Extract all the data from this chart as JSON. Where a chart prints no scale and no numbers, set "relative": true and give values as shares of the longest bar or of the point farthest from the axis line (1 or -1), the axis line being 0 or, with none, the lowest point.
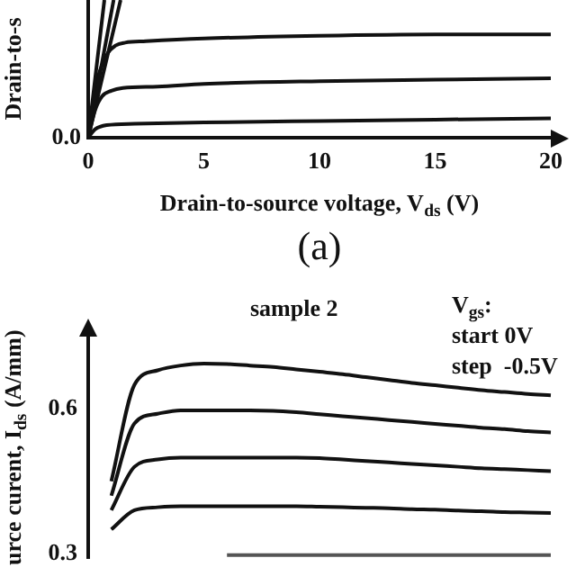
{
  "chart_data": [
    {
      "type": "line",
      "relative": true,
      "xlabel": "Drain-to-source voltage, V$_{ds}$ (V)",
      "ylabel": "Drain-to-s",
      "xlim": [
        0,
        20
      ],
      "xticks": [
        0,
        5,
        10,
        15,
        20
      ],
      "grid": false,
      "legend": false,
      "marker": "none",
      "line_style": "solid",
      "annotations": [
        "0.0",
        "(a)"
      ],
      "series": [
        {
          "color": "#111111",
          "x": [
            0,
            0.7
          ],
          "values": [
            0,
            1
          ]
        },
        {
          "color": "#111111",
          "x": [
            0,
            1.1
          ],
          "values": [
            0,
            1
          ]
        },
        {
          "color": "#111111",
          "x": [
            0,
            1.4
          ],
          "values": [
            0,
            1
          ]
        },
        {
          "color": "#111111",
          "x": [
            0,
            0.3,
            0.8,
            1.2,
            1.6,
            2.5,
            5,
            10,
            15,
            20
          ],
          "values": [
            0,
            0.35,
            0.6,
            0.67,
            0.69,
            0.7,
            0.72,
            0.74,
            0.75,
            0.75
          ]
        },
        {
          "color": "#111111",
          "x": [
            0,
            0.3,
            0.6,
            1,
            1.5,
            3,
            5,
            10,
            15,
            20
          ],
          "values": [
            0,
            0.2,
            0.3,
            0.34,
            0.36,
            0.37,
            0.39,
            0.41,
            0.42,
            0.43
          ]
        },
        {
          "color": "#111111",
          "x": [
            0,
            0.3,
            0.8,
            2,
            5,
            10,
            15,
            20
          ],
          "values": [
            0,
            0.06,
            0.09,
            0.1,
            0.11,
            0.12,
            0.13,
            0.14
          ]
        }
      ]
    },
    {
      "type": "line",
      "title": "sample 2",
      "ylabel": "urce curent, I$_{ds}$ (A/mm)",
      "ylim": [
        0.29,
        0.75
      ],
      "yticks": [
        0.3,
        0.6
      ],
      "tick_labels": "y",
      "grid": false,
      "legend": false,
      "marker": "none",
      "line_style": "solid",
      "annotations": [
        "V$_{gs}$:",
        "start 0V",
        "step  -0.5V"
      ],
      "categories": [
        null,
        null,
        null,
        null,
        null,
        null,
        null,
        null,
        null,
        null,
        null,
        null,
        null,
        null,
        null,
        null,
        null,
        null,
        null,
        null,
        null
      ],
      "series": [
        {
          "color": "#111111",
          "values": [
            null,
            0.45,
            0.65,
            0.68,
            0.69,
            0.694,
            0.693,
            0.69,
            0.687,
            0.682,
            0.677,
            0.672,
            0.666,
            0.66,
            0.654,
            0.649,
            0.644,
            0.639,
            0.635,
            0.631,
            0.628
          ]
        },
        {
          "color": "#111111",
          "values": [
            null,
            0.42,
            0.57,
            0.59,
            0.597,
            0.597,
            0.597,
            0.597,
            0.596,
            0.593,
            0.589,
            0.585,
            0.581,
            0.577,
            0.573,
            0.569,
            0.565,
            0.561,
            0.558,
            0.554,
            0.551
          ]
        },
        {
          "color": "#111111",
          "values": [
            null,
            0.39,
            0.48,
            0.495,
            0.499,
            0.499,
            0.499,
            0.499,
            0.499,
            0.499,
            0.498,
            0.495,
            0.492,
            0.489,
            0.486,
            0.483,
            0.48,
            0.477,
            0.475,
            0.473,
            0.471
          ]
        },
        {
          "color": "#111111",
          "values": [
            null,
            0.35,
            0.39,
            0.396,
            0.398,
            0.398,
            0.398,
            0.398,
            0.398,
            0.398,
            0.397,
            0.396,
            0.395,
            0.394,
            0.392,
            0.391,
            0.389,
            0.388,
            0.386,
            0.385,
            0.384
          ]
        },
        {
          "color": "#555555",
          "values": [
            null,
            null,
            null,
            null,
            null,
            null,
            0.297,
            0.297,
            0.297,
            0.297,
            0.297,
            0.297,
            0.297,
            0.297,
            0.297,
            0.297,
            0.297,
            0.297,
            0.297,
            0.297,
            0.297
          ]
        }
      ]
    }
  ]
}
